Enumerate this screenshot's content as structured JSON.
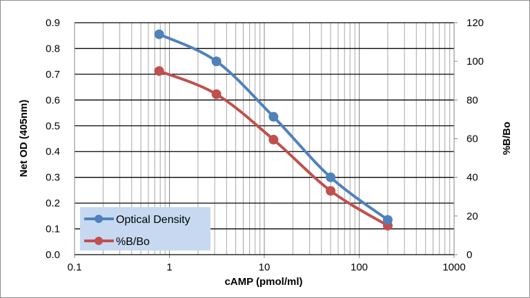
{
  "chart_data": {
    "type": "line",
    "xlabel": "cAMP (pmol/ml)",
    "ylabel": "Net OD (405nm)",
    "y2label": "%B/Bo",
    "x_scale": "log",
    "xlim": [
      0.1,
      1000
    ],
    "ylim": [
      0,
      0.9
    ],
    "y2lim": [
      0,
      120
    ],
    "x_ticks": [
      "0.1",
      "1",
      "10",
      "100",
      "1000"
    ],
    "y_ticks": [
      "0.0",
      "0.1",
      "0.2",
      "0.3",
      "0.4",
      "0.5",
      "0.6",
      "0.7",
      "0.8",
      "0.9"
    ],
    "y2_ticks": [
      "0",
      "20",
      "40",
      "60",
      "80",
      "100",
      "120"
    ],
    "grid": true,
    "legend_position": "bottom-left",
    "x": [
      0.78,
      3.13,
      12.5,
      50,
      200
    ],
    "series": [
      {
        "name": "Optical Density",
        "axis": "left",
        "color": "#4f81bd",
        "values": [
          0.855,
          0.75,
          0.535,
          0.3,
          0.135
        ]
      },
      {
        "name": "%B/Bo",
        "axis": "right",
        "color": "#c0504d",
        "values": [
          95,
          83,
          59.5,
          33,
          15
        ]
      }
    ]
  }
}
